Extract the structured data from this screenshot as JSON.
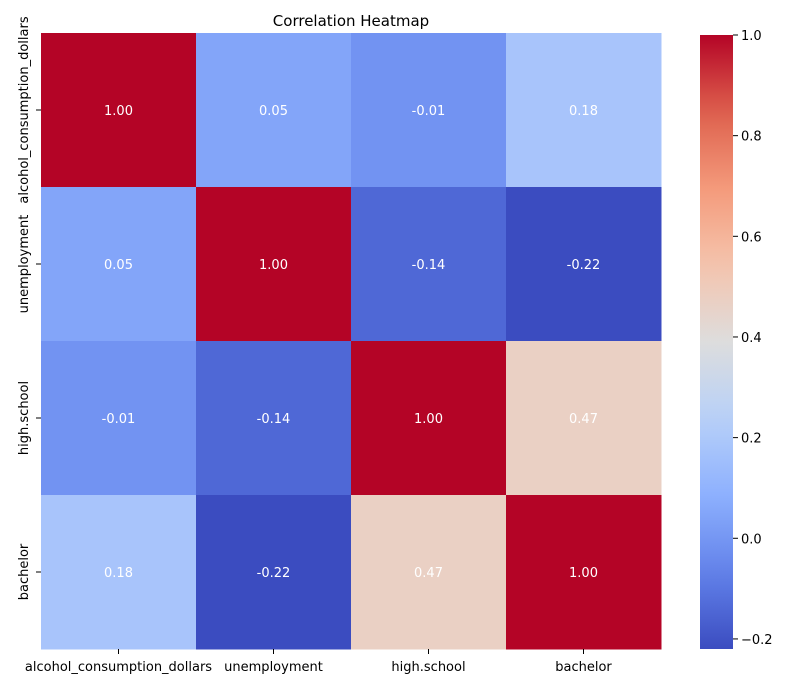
{
  "chart_data": {
    "type": "heatmap",
    "title": "Correlation Heatmap",
    "xlabel": "",
    "ylabel": "",
    "x_categories": [
      "alcohol_consumption_dollars",
      "unemployment",
      "high.school",
      "bachelor"
    ],
    "y_categories": [
      "alcohol_consumption_dollars",
      "unemployment",
      "high.school",
      "bachelor"
    ],
    "values": [
      [
        1.0,
        0.05,
        -0.01,
        0.18
      ],
      [
        0.05,
        1.0,
        -0.14,
        -0.22
      ],
      [
        -0.01,
        -0.14,
        1.0,
        0.47
      ],
      [
        0.18,
        -0.22,
        0.47,
        1.0
      ]
    ],
    "value_labels": [
      [
        "1.00",
        "0.05",
        "-0.01",
        "0.18"
      ],
      [
        "0.05",
        "1.00",
        "-0.14",
        "-0.22"
      ],
      [
        "-0.01",
        "-0.14",
        "1.00",
        "0.47"
      ],
      [
        "0.18",
        "-0.22",
        "0.47",
        "1.00"
      ]
    ],
    "colormap": "coolwarm",
    "colorbar": {
      "range": [
        -0.22,
        1.0
      ],
      "ticks": [
        -0.2,
        0.0,
        0.2,
        0.4,
        0.6,
        0.8,
        1.0
      ],
      "tick_labels": [
        "−0.2",
        "0.0",
        "0.2",
        "0.4",
        "0.6",
        "0.8",
        "1.0"
      ]
    },
    "grid": false,
    "legend": "colorbar-right"
  }
}
